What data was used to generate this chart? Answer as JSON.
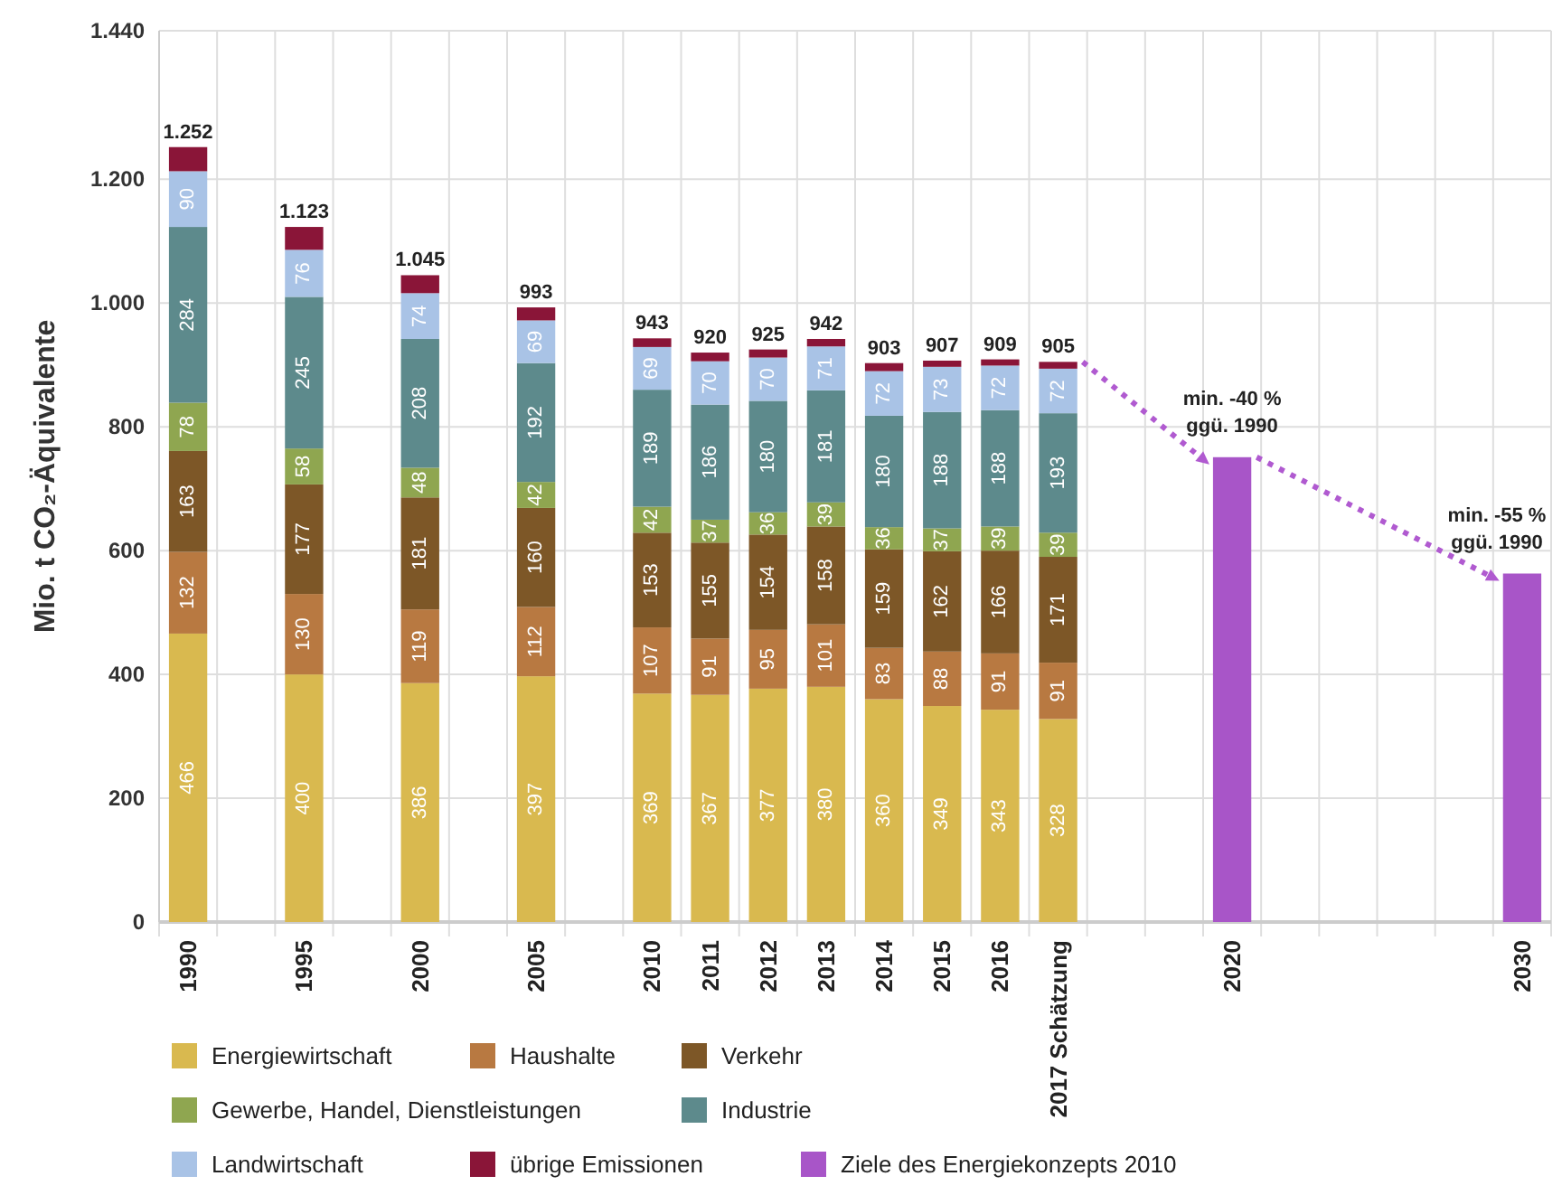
{
  "chart_data": {
    "type": "bar",
    "stacked": true,
    "ylabel": "Mio. t CO₂-Äquivalente",
    "categories": [
      "1990",
      null,
      "1995",
      null,
      "2000",
      null,
      "2005",
      null,
      "2010",
      "2011",
      "2012",
      "2013",
      "2014",
      "2015",
      "2016",
      "2017 Schätzung",
      null,
      null,
      "2020",
      null,
      null,
      null,
      null,
      "2030"
    ],
    "series": [
      {
        "name": "Energiewirtschaft",
        "color": "#d9b94f",
        "values": [
          466,
          null,
          400,
          null,
          386,
          null,
          397,
          null,
          369,
          367,
          377,
          380,
          360,
          349,
          343,
          328,
          null,
          null,
          null,
          null,
          null,
          null,
          null,
          null
        ],
        "value_labels": [
          "466",
          null,
          "400",
          null,
          "386",
          null,
          "397",
          null,
          "369",
          "367",
          "377",
          "380",
          "360",
          "349",
          "343",
          "328",
          null,
          null,
          null,
          null,
          null,
          null,
          null,
          null
        ]
      },
      {
        "name": "Haushalte",
        "color": "#b87941",
        "values": [
          132,
          null,
          130,
          null,
          119,
          null,
          112,
          null,
          107,
          91,
          95,
          101,
          83,
          88,
          91,
          91,
          null,
          null,
          null,
          null,
          null,
          null,
          null,
          null
        ],
        "value_labels": [
          "132",
          null,
          "130",
          null,
          "119",
          null,
          "112",
          null,
          "107",
          "91",
          "95",
          "101",
          "83",
          "88",
          "91",
          "91",
          null,
          null,
          null,
          null,
          null,
          null,
          null,
          null
        ]
      },
      {
        "name": "Verkehr",
        "color": "#7d5727",
        "values": [
          163,
          null,
          177,
          null,
          181,
          null,
          160,
          null,
          153,
          155,
          154,
          158,
          159,
          162,
          166,
          171,
          null,
          null,
          null,
          null,
          null,
          null,
          null,
          null
        ],
        "value_labels": [
          "163",
          null,
          "177",
          null,
          "181",
          null,
          "160",
          null,
          "153",
          "155",
          "154",
          "158",
          "159",
          "162",
          "166",
          "171",
          null,
          null,
          null,
          null,
          null,
          null,
          null,
          null
        ]
      },
      {
        "name": "Gewerbe, Handel, Dienstleistungen",
        "color": "#8fa650",
        "values": [
          78,
          null,
          58,
          null,
          48,
          null,
          42,
          null,
          42,
          37,
          36,
          39,
          36,
          37,
          39,
          39,
          null,
          null,
          null,
          null,
          null,
          null,
          null,
          null
        ],
        "value_labels": [
          "78",
          null,
          "58",
          null,
          "48",
          null,
          "42",
          null,
          "42",
          "37",
          "36",
          "39",
          "36",
          "37",
          "39",
          "39",
          null,
          null,
          null,
          null,
          null,
          null,
          null,
          null
        ]
      },
      {
        "name": "Industrie",
        "color": "#5d8a8c",
        "values": [
          284,
          null,
          245,
          null,
          208,
          null,
          192,
          null,
          189,
          186,
          180,
          181,
          180,
          188,
          188,
          193,
          null,
          null,
          null,
          null,
          null,
          null,
          null,
          null
        ],
        "value_labels": [
          "284",
          null,
          "245",
          null,
          "208",
          null,
          "192",
          null,
          "189",
          "186",
          "180",
          "181",
          "180",
          "188",
          "188",
          "193",
          null,
          null,
          null,
          null,
          null,
          null,
          null,
          null
        ]
      },
      {
        "name": "Landwirtschaft",
        "color": "#a9c3e6",
        "values": [
          90,
          null,
          76,
          null,
          74,
          null,
          69,
          null,
          69,
          70,
          70,
          71,
          72,
          73,
          72,
          72,
          null,
          null,
          null,
          null,
          null,
          null,
          null,
          null
        ],
        "value_labels": [
          "90",
          null,
          "76",
          null,
          "74",
          null,
          "69",
          null,
          "69",
          "70",
          "70",
          "71",
          "72",
          "73",
          "72",
          "72",
          null,
          null,
          null,
          null,
          null,
          null,
          null,
          null
        ]
      },
      {
        "name": "übrige Emissionen",
        "color": "#8a1538",
        "values": [
          39,
          null,
          37,
          null,
          29,
          null,
          21,
          null,
          14,
          14,
          13,
          12,
          13,
          10,
          10,
          11,
          null,
          null,
          null,
          null,
          null,
          null,
          null,
          null
        ]
      },
      {
        "name": "Ziele des Energiekonzepts 2010",
        "color": "#a855c8",
        "values": [
          null,
          null,
          null,
          null,
          null,
          null,
          null,
          null,
          null,
          null,
          null,
          null,
          null,
          null,
          null,
          null,
          null,
          null,
          751,
          null,
          null,
          null,
          null,
          563
        ]
      }
    ],
    "totals": [
      "1.252",
      null,
      "1.123",
      null,
      "1.045",
      null,
      "993",
      null,
      "943",
      "920",
      "925",
      "942",
      "903",
      "907",
      "909",
      "905",
      null,
      null,
      null,
      null,
      null,
      null,
      null,
      null
    ],
    "annotations": [
      {
        "text": "min. -40 %\nggü. 1990",
        "x": "2020",
        "y": 751
      },
      {
        "text": "min. -55 %\nggü. 1990",
        "x": "2030",
        "y": 563
      }
    ],
    "ylim": [
      0,
      1440
    ],
    "yticks": [
      0,
      200,
      400,
      600,
      800,
      {
        "value": 1000,
        "label": "1.000"
      },
      {
        "value": 1200,
        "label": "1.200"
      },
      {
        "value": 1440,
        "label": "1.440"
      }
    ],
    "grid": true,
    "legend": "bottom"
  }
}
